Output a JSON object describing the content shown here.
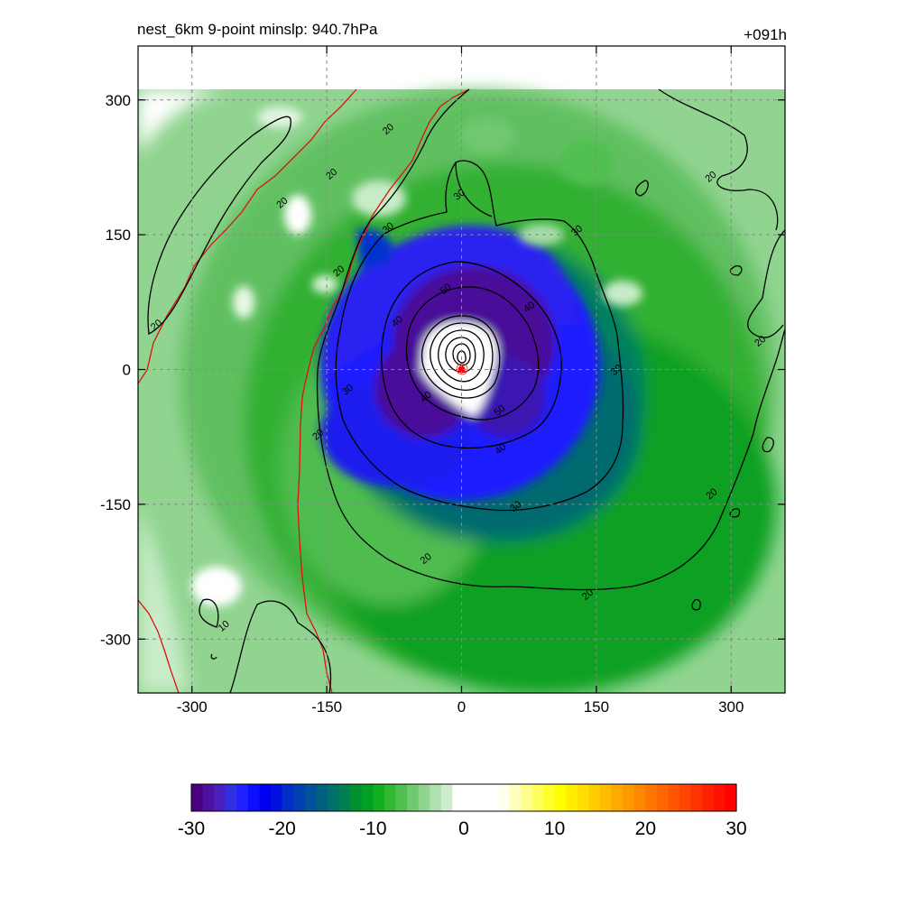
{
  "chart_data": {
    "type": "heatmap",
    "title_left": "nest_6km  9-point minslp: 940.7hPa",
    "title_right": "+091h",
    "x_ticks": [
      -300,
      -150,
      0,
      150,
      300
    ],
    "y_ticks": [
      300,
      150,
      0,
      -150,
      -300
    ],
    "xlim": [
      -360,
      360
    ],
    "ylim": [
      -360,
      360
    ],
    "grid": true,
    "grid_style": "dashed",
    "storm_center": {
      "x": 0,
      "y": 0
    },
    "colorbar": {
      "min": -30,
      "max": 30,
      "tick_labels": [
        "-30",
        "-20",
        "-10",
        "0",
        "10",
        "20",
        "30"
      ],
      "tick_values": [
        -30,
        -20,
        -10,
        0,
        10,
        20,
        30
      ],
      "bins": 48,
      "colors_negative": [
        "#4b0082",
        "#4f10a0",
        "#4820c0",
        "#3030e0",
        "#1f1fff",
        "#0a10ff",
        "#0000f0",
        "#0010e0",
        "#0030c8",
        "#0040b0",
        "#00509a",
        "#006080",
        "#00706a",
        "#008050",
        "#009030",
        "#00a020",
        "#10b020",
        "#30b830",
        "#50c050",
        "#70c870",
        "#90d490",
        "#b0e0b0",
        "#d0ecd0"
      ],
      "colors_positive": [
        "#fffff0",
        "#ffffc0",
        "#ffff90",
        "#ffff60",
        "#ffff30",
        "#ffff00",
        "#ffee00",
        "#ffdd00",
        "#ffcc00",
        "#ffbb00",
        "#ffaa00",
        "#ff9900",
        "#ff8800",
        "#ff7700",
        "#ff6600",
        "#ff5500",
        "#ff4400",
        "#ff3300",
        "#ff2200",
        "#ff1100",
        "#ff0000"
      ]
    },
    "contour_levels": [
      10,
      20,
      30,
      40,
      50
    ],
    "contour_labels": [
      {
        "text": "20",
        "x": -145,
        "y": 218
      },
      {
        "text": "20",
        "x": -200,
        "y": 186
      },
      {
        "text": "20",
        "x": -340,
        "y": 50
      },
      {
        "text": "20",
        "x": -137,
        "y": 110
      },
      {
        "text": "20",
        "x": -160,
        "y": -72
      },
      {
        "text": "20",
        "x": -40,
        "y": -210
      },
      {
        "text": "20",
        "x": 140,
        "y": -250
      },
      {
        "text": "20",
        "x": 278,
        "y": -138
      },
      {
        "text": "20",
        "x": 332,
        "y": 32
      },
      {
        "text": "20",
        "x": 277,
        "y": 215
      },
      {
        "text": "20",
        "x": -82,
        "y": 268
      },
      {
        "text": "30",
        "x": -3,
        "y": 195
      },
      {
        "text": "30",
        "x": -82,
        "y": 158
      },
      {
        "text": "30",
        "x": 128,
        "y": 155
      },
      {
        "text": "30",
        "x": 172,
        "y": 0
      },
      {
        "text": "30",
        "x": -127,
        "y": -22
      },
      {
        "text": "30",
        "x": 60,
        "y": -152
      },
      {
        "text": "40",
        "x": -72,
        "y": 54
      },
      {
        "text": "40",
        "x": 75,
        "y": 70
      },
      {
        "text": "40",
        "x": -40,
        "y": -30
      },
      {
        "text": "40",
        "x": 43,
        "y": -88
      },
      {
        "text": "50",
        "x": -18,
        "y": 90
      },
      {
        "text": "50",
        "x": 42,
        "y": -45
      },
      {
        "text": "10",
        "x": -265,
        "y": -285
      }
    ]
  }
}
